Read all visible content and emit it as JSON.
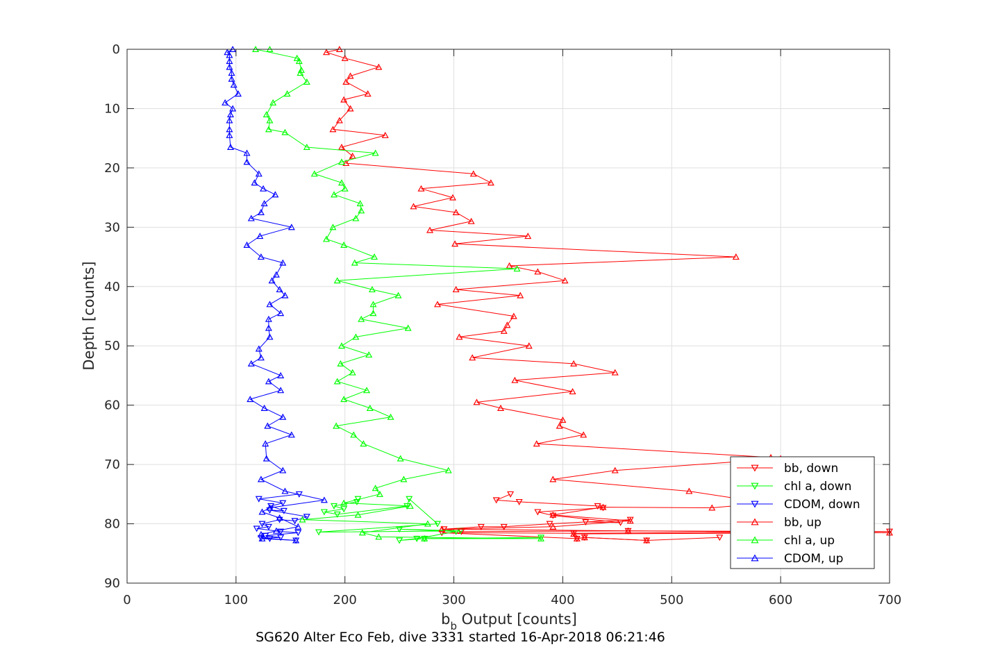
{
  "chart_data": {
    "type": "line",
    "title": "SG620 Alter Eco Feb, dive 3331 started 16-Apr-2018 06:21:46",
    "xlabel_main": "b",
    "xlabel_sub": "b",
    "xlabel_rest": " Output [counts]",
    "ylabel": "Depth [counts]",
    "xlim": [
      0,
      700
    ],
    "ylim": [
      0,
      90
    ],
    "y_reversed": true,
    "xticks": [
      0,
      100,
      200,
      300,
      400,
      500,
      600,
      700
    ],
    "yticks": [
      0,
      10,
      20,
      30,
      40,
      50,
      60,
      70,
      80,
      90
    ],
    "grid": true,
    "legend_position": "bottom-right",
    "colors": {
      "red": "#ff0000",
      "green": "#00ff00",
      "blue": "#0000ff"
    },
    "series": [
      {
        "name": "bb, down",
        "color": "#ff0000",
        "marker": "triangle-down",
        "points": [
          [
            352,
            75
          ],
          [
            339,
            76
          ],
          [
            360,
            76.3
          ],
          [
            432,
            77
          ],
          [
            437,
            77.3
          ],
          [
            377,
            78
          ],
          [
            391,
            78.6
          ],
          [
            453,
            79.8
          ],
          [
            421,
            79.7
          ],
          [
            462,
            79.3
          ],
          [
            388,
            80
          ],
          [
            346,
            80.5
          ],
          [
            325,
            80.5
          ],
          [
            291,
            80.9
          ],
          [
            307,
            81.3
          ],
          [
            460,
            81.2
          ],
          [
            700,
            81.3
          ],
          [
            410,
            81.6
          ],
          [
            289,
            81.5
          ],
          [
            413,
            82.5
          ],
          [
            420,
            82.3
          ],
          [
            477,
            82.8
          ],
          [
            544,
            82.3
          ]
        ]
      },
      {
        "name": "chl a, down",
        "color": "#00ff00",
        "marker": "triangle-down",
        "points": [
          [
            212,
            75.8
          ],
          [
            211,
            76.3
          ],
          [
            190,
            77
          ],
          [
            199,
            77.5
          ],
          [
            181,
            78
          ],
          [
            193,
            78.4
          ],
          [
            257,
            77
          ],
          [
            259,
            75.8
          ],
          [
            285,
            80
          ],
          [
            176,
            81.4
          ],
          [
            306,
            81.2
          ],
          [
            250,
            80.9
          ],
          [
            302,
            81.3
          ],
          [
            266,
            82.5
          ],
          [
            250,
            82.8
          ],
          [
            273,
            82.5
          ],
          [
            380,
            82.3
          ]
        ]
      },
      {
        "name": "CDOM, down",
        "color": "#0000ff",
        "marker": "triangle-down",
        "points": [
          [
            158,
            75
          ],
          [
            121,
            75.8
          ],
          [
            143,
            76.5
          ],
          [
            132,
            77
          ],
          [
            144,
            77.8
          ],
          [
            131,
            77.7
          ],
          [
            165,
            78.8
          ],
          [
            154,
            79.5
          ],
          [
            140,
            79.3
          ],
          [
            124,
            80
          ],
          [
            130,
            80.5
          ],
          [
            119,
            80.8
          ],
          [
            141,
            81.3
          ],
          [
            157,
            81.5
          ],
          [
            127,
            82
          ],
          [
            141,
            82.3
          ],
          [
            123,
            82.4
          ],
          [
            131,
            82.5
          ],
          [
            155,
            82.8
          ]
        ]
      },
      {
        "name": "bb, up",
        "color": "#ff0000",
        "marker": "triangle-up",
        "points": [
          [
            477,
            82.8
          ],
          [
            420,
            82.3
          ],
          [
            413,
            82.5
          ],
          [
            410,
            81.7
          ],
          [
            700,
            81.5
          ],
          [
            460,
            81.2
          ],
          [
            289,
            80.9
          ],
          [
            391,
            80.5
          ],
          [
            462,
            79.5
          ],
          [
            391,
            78.5
          ],
          [
            437,
            77.2
          ],
          [
            537,
            77.3
          ],
          [
            587,
            76.5
          ],
          [
            516,
            74.5
          ],
          [
            391,
            72.5
          ],
          [
            448,
            71
          ],
          [
            600,
            69
          ],
          [
            591,
            68.8
          ],
          [
            376,
            66.5
          ],
          [
            419,
            65
          ],
          [
            397,
            63.5
          ],
          [
            400,
            62.5
          ],
          [
            343,
            60.5
          ],
          [
            321,
            59.5
          ],
          [
            409,
            57.7
          ],
          [
            356,
            55.8
          ],
          [
            448,
            54.5
          ],
          [
            410,
            53
          ],
          [
            317,
            52
          ],
          [
            369,
            50
          ],
          [
            305,
            48.5
          ],
          [
            346,
            47.5
          ],
          [
            349,
            46.5
          ],
          [
            355,
            45
          ],
          [
            285,
            43
          ],
          [
            361,
            41.5
          ],
          [
            302,
            40.5
          ],
          [
            402,
            39
          ],
          [
            377,
            37.5
          ],
          [
            351,
            36.5
          ],
          [
            559,
            35
          ],
          [
            301,
            32.8
          ],
          [
            368,
            31.5
          ],
          [
            278,
            30.5
          ],
          [
            316,
            29
          ],
          [
            302,
            27.5
          ],
          [
            263,
            26.5
          ],
          [
            299,
            25
          ],
          [
            270,
            23.5
          ],
          [
            334,
            22.5
          ],
          [
            318,
            21
          ],
          [
            201,
            19.2
          ],
          [
            207,
            18
          ],
          [
            197,
            16.5
          ],
          [
            237,
            14.5
          ],
          [
            189,
            13.5
          ],
          [
            195,
            12
          ],
          [
            205,
            10
          ],
          [
            199,
            8.5
          ],
          [
            221,
            7.5
          ],
          [
            201,
            5.5
          ],
          [
            205,
            4.5
          ],
          [
            231,
            3
          ],
          [
            200,
            1.5
          ],
          [
            183,
            0.5
          ],
          [
            195,
            0
          ]
        ]
      },
      {
        "name": "chl a, up",
        "color": "#00ff00",
        "marker": "triangle-up",
        "points": [
          [
            273,
            82.5
          ],
          [
            380,
            82.5
          ],
          [
            231,
            82.2
          ],
          [
            216,
            81.5
          ],
          [
            276,
            80
          ],
          [
            161,
            79.3
          ],
          [
            212,
            78.5
          ],
          [
            260,
            77
          ],
          [
            199,
            76.5
          ],
          [
            232,
            75
          ],
          [
            228,
            74
          ],
          [
            254,
            72.5
          ],
          [
            295,
            71
          ],
          [
            251,
            69
          ],
          [
            217,
            66.5
          ],
          [
            208,
            65
          ],
          [
            192,
            63.5
          ],
          [
            242,
            62
          ],
          [
            223,
            60.5
          ],
          [
            199,
            59
          ],
          [
            220,
            57.5
          ],
          [
            193,
            56
          ],
          [
            207,
            54.5
          ],
          [
            196,
            53
          ],
          [
            222,
            51.5
          ],
          [
            197,
            50
          ],
          [
            210,
            48.5
          ],
          [
            258,
            47
          ],
          [
            215,
            45.5
          ],
          [
            226,
            44.5
          ],
          [
            226,
            43
          ],
          [
            249,
            41.5
          ],
          [
            225,
            40.5
          ],
          [
            193,
            39
          ],
          [
            358,
            37
          ],
          [
            209,
            36
          ],
          [
            227,
            35
          ],
          [
            199,
            33
          ],
          [
            183,
            32
          ],
          [
            189,
            30
          ],
          [
            210,
            28.5
          ],
          [
            215,
            27.2
          ],
          [
            214,
            26
          ],
          [
            190,
            24.5
          ],
          [
            200,
            23.5
          ],
          [
            197,
            22.5
          ],
          [
            172,
            21
          ],
          [
            197,
            19
          ],
          [
            228,
            17.5
          ],
          [
            165,
            16.5
          ],
          [
            145,
            14
          ],
          [
            130,
            13.5
          ],
          [
            131,
            12
          ],
          [
            128,
            11
          ],
          [
            134,
            9
          ],
          [
            147,
            7.5
          ],
          [
            165,
            5.5
          ],
          [
            159,
            4
          ],
          [
            160,
            3.5
          ],
          [
            158,
            2
          ],
          [
            156,
            1.5
          ],
          [
            118,
            0
          ],
          [
            131,
            0
          ]
        ]
      },
      {
        "name": "CDOM, up",
        "color": "#0000ff",
        "marker": "triangle-up",
        "points": [
          [
            155,
            82.8
          ],
          [
            124,
            82.5
          ],
          [
            123,
            81.8
          ],
          [
            137,
            81.2
          ],
          [
            157,
            80.5
          ],
          [
            140,
            79
          ],
          [
            124,
            78
          ],
          [
            131,
            77.3
          ],
          [
            181,
            76
          ],
          [
            145,
            74.5
          ],
          [
            123,
            72.5
          ],
          [
            143,
            71
          ],
          [
            128,
            69
          ],
          [
            127,
            66.5
          ],
          [
            151,
            65
          ],
          [
            129,
            63.5
          ],
          [
            143,
            62
          ],
          [
            126,
            60.5
          ],
          [
            113,
            59
          ],
          [
            141,
            57.5
          ],
          [
            130,
            56
          ],
          [
            141,
            55
          ],
          [
            114,
            53
          ],
          [
            123,
            52
          ],
          [
            121,
            50.5
          ],
          [
            131,
            48.5
          ],
          [
            130,
            47
          ],
          [
            130,
            45.5
          ],
          [
            141,
            44.5
          ],
          [
            131,
            43
          ],
          [
            145,
            41.5
          ],
          [
            140,
            40.5
          ],
          [
            133,
            39
          ],
          [
            137,
            38
          ],
          [
            143,
            36
          ],
          [
            123,
            35
          ],
          [
            110,
            33
          ],
          [
            122,
            31.5
          ],
          [
            151,
            30
          ],
          [
            114,
            28.5
          ],
          [
            123,
            27.5
          ],
          [
            126,
            26
          ],
          [
            136,
            24.5
          ],
          [
            125,
            23.5
          ],
          [
            117,
            22.5
          ],
          [
            121,
            21
          ],
          [
            110,
            19
          ],
          [
            110,
            17.5
          ],
          [
            95,
            16.5
          ],
          [
            94,
            14.5
          ],
          [
            94,
            13.5
          ],
          [
            94,
            12
          ],
          [
            95,
            11
          ],
          [
            97,
            10
          ],
          [
            90,
            9
          ],
          [
            102,
            7.5
          ],
          [
            98,
            6
          ],
          [
            96,
            5
          ],
          [
            96,
            4
          ],
          [
            94,
            3
          ],
          [
            94,
            2
          ],
          [
            94,
            1
          ],
          [
            92,
            0.5
          ],
          [
            97,
            0
          ]
        ]
      }
    ]
  }
}
